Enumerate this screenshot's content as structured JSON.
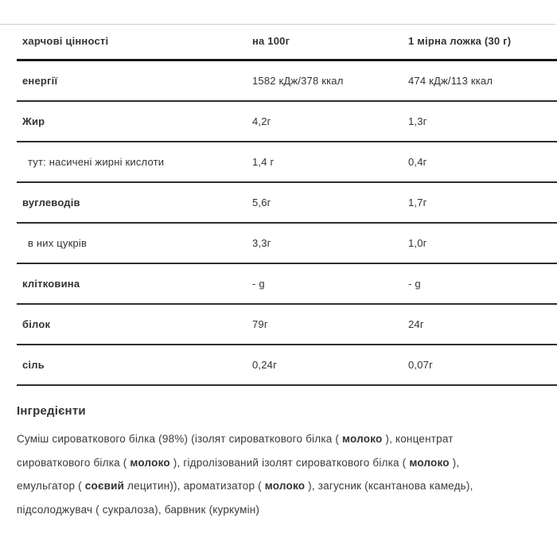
{
  "table": {
    "header": {
      "nutrient": "харчові цінності",
      "per100": "на 100г",
      "spoon": "1 мірна ложка (30 г)"
    },
    "rows": [
      {
        "label": "енергії",
        "per100": "1582 кДж/378 ккал",
        "spoon": "474 кДж/113 ккал",
        "sub": false
      },
      {
        "label": "Жир",
        "per100": "4,2г",
        "spoon": "1,3г",
        "sub": false
      },
      {
        "label": "тут: насичені жирні кислоти",
        "per100": "1,4 г",
        "spoon": "0,4г",
        "sub": true
      },
      {
        "label": "вуглеводів",
        "per100": "5,6г",
        "spoon": "1,7г",
        "sub": false
      },
      {
        "label": "в них цукрів",
        "per100": "3,3г",
        "spoon": "1,0г",
        "sub": true
      },
      {
        "label": "клітковина",
        "per100": "- g",
        "spoon": "- g",
        "sub": false
      },
      {
        "label": "білок",
        "per100": "79г",
        "spoon": "24г",
        "sub": false
      },
      {
        "label": "сіль",
        "per100": "0,24г",
        "spoon": "0,07г",
        "sub": false
      }
    ]
  },
  "ingredients": {
    "heading": "Інгредієнти",
    "lines": [
      [
        {
          "text": "Суміш сироваткового білка (98%) (ізолят сироваткового білка ( ",
          "bold": false
        },
        {
          "text": "молоко",
          "bold": true
        },
        {
          "text": " ), концентрат",
          "bold": false
        }
      ],
      [
        {
          "text": "сироваткового білка ( ",
          "bold": false
        },
        {
          "text": "молоко",
          "bold": true
        },
        {
          "text": " ), гідролізований ізолят сироваткового білка ( ",
          "bold": false
        },
        {
          "text": "молоко",
          "bold": true
        },
        {
          "text": " ),",
          "bold": false
        }
      ],
      [
        {
          "text": "емульгатор ( ",
          "bold": false
        },
        {
          "text": "соєвий",
          "bold": true
        },
        {
          "text": " лецитин)), ароматизатор ( ",
          "bold": false
        },
        {
          "text": "молоко",
          "bold": true
        },
        {
          "text": " ), загусник (ксантанова камедь),",
          "bold": false
        }
      ],
      [
        {
          "text": "підсолоджувач ( сукралоза), барвник (куркумін)",
          "bold": false
        }
      ]
    ]
  }
}
